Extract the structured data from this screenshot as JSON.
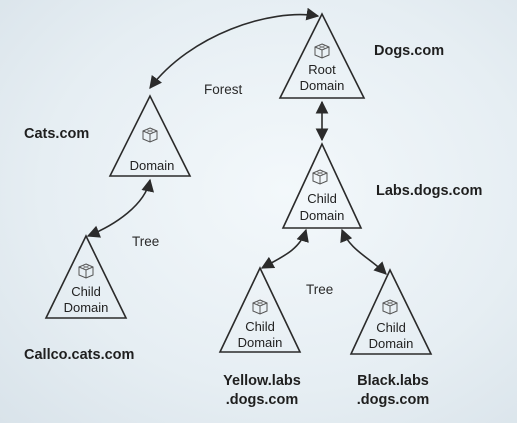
{
  "domains": {
    "dogs_root": {
      "line1": "Root",
      "line2": "Domain",
      "name": "Dogs.com"
    },
    "cats": {
      "line1": "Domain",
      "name": "Cats.com"
    },
    "labs_child": {
      "line1": "Child",
      "line2": "Domain",
      "name": "Labs.dogs.com"
    },
    "callco_child": {
      "line1": "Child",
      "line2": "Domain",
      "name": "Callco.cats.com"
    },
    "yellow_child": {
      "line1": "Child",
      "line2": "Domain",
      "name_line1": "Yellow.labs",
      "name_line2": ".dogs.com"
    },
    "black_child": {
      "line1": "Child",
      "line2": "Domain",
      "name_line1": "Black.labs",
      "name_line2": ".dogs.com"
    }
  },
  "relationships": {
    "forest": "Forest",
    "tree_cats": "Tree",
    "tree_dogs": "Tree"
  },
  "colors": {
    "stroke": "#2b2b2b",
    "icon": "#555555",
    "background": "#e8f0f4"
  }
}
